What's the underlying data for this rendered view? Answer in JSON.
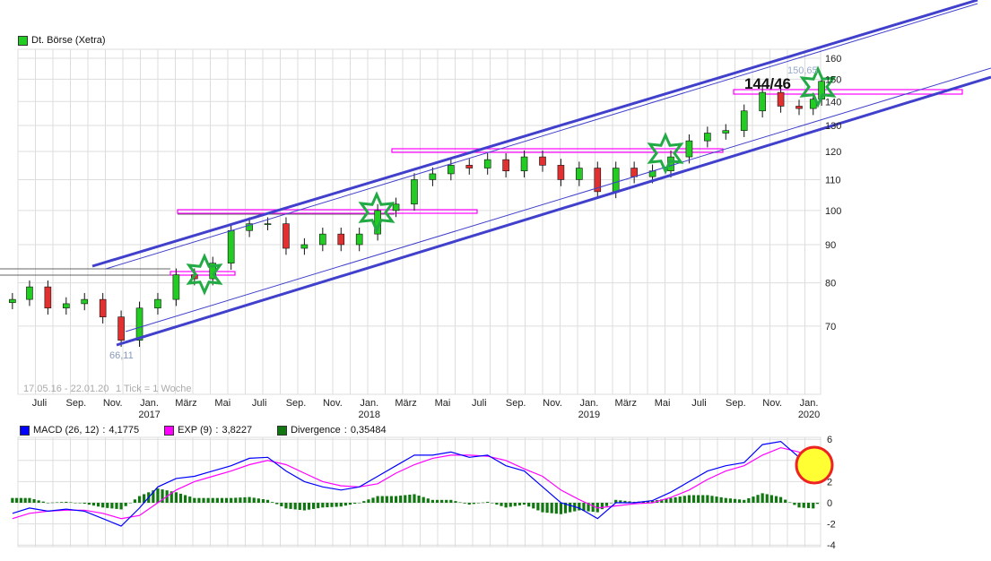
{
  "title": "Dt. Börse (Xetra)",
  "colors": {
    "up": "#22cc22",
    "down": "#e03030",
    "channel": "#4040cc",
    "resistance": "#ff00ff",
    "star": "#22aa44",
    "macd": "#0000ff",
    "exp": "#ff00ff",
    "divergence": "#117711",
    "grid": "#dddddd",
    "highlight_fill": "#ffff33",
    "highlight_ring": "#ee2222"
  },
  "range_text": "17.05.16 - 22.01.20",
  "tick_text": "1 Tick = 1 Woche",
  "annotation": "144/46",
  "high_label": "150,65",
  "low_label": "66,11",
  "chart_data": [
    {
      "type": "candlestick",
      "name": "Dt. Börse (Xetra)",
      "yscale": "log",
      "ylim": [
        62,
        165
      ],
      "yticks": [
        70,
        80,
        90,
        100,
        110,
        120,
        130,
        140,
        150,
        160
      ],
      "xticks": [
        {
          "label": "Juli",
          "date": "2016-07-01"
        },
        {
          "label": "Sep.",
          "date": "2016-09-01"
        },
        {
          "label": "Nov.",
          "date": "2016-11-01"
        },
        {
          "label": "Jan.",
          "year": "2017",
          "date": "2017-01-01"
        },
        {
          "label": "März",
          "date": "2017-03-01"
        },
        {
          "label": "Mai",
          "date": "2017-05-01"
        },
        {
          "label": "Juli",
          "date": "2017-07-01"
        },
        {
          "label": "Sep.",
          "date": "2017-09-01"
        },
        {
          "label": "Nov.",
          "date": "2017-11-01"
        },
        {
          "label": "Jan.",
          "year": "2018",
          "date": "2018-01-01"
        },
        {
          "label": "März",
          "date": "2018-03-01"
        },
        {
          "label": "Mai",
          "date": "2018-05-01"
        },
        {
          "label": "Juli",
          "date": "2018-07-01"
        },
        {
          "label": "Sep.",
          "date": "2018-09-01"
        },
        {
          "label": "Nov.",
          "date": "2018-11-01"
        },
        {
          "label": "Jan.",
          "year": "2019",
          "date": "2019-01-01"
        },
        {
          "label": "März",
          "date": "2019-03-01"
        },
        {
          "label": "Mai",
          "date": "2019-05-01"
        },
        {
          "label": "Juli",
          "date": "2019-07-01"
        },
        {
          "label": "Sep.",
          "date": "2019-09-01"
        },
        {
          "label": "Nov.",
          "date": "2019-11-01"
        },
        {
          "label": "Jan.",
          "year": "2020",
          "date": "2020-01-01"
        }
      ],
      "dates": [
        "2016-05-17",
        "2016-06-15",
        "2016-07-15",
        "2016-08-15",
        "2016-09-15",
        "2016-10-15",
        "2016-11-15",
        "2016-12-15",
        "2017-01-15",
        "2017-02-15",
        "2017-03-15",
        "2017-04-15",
        "2017-05-15",
        "2017-06-15",
        "2017-07-15",
        "2017-08-15",
        "2017-09-15",
        "2017-10-15",
        "2017-11-15",
        "2017-12-15",
        "2018-01-15",
        "2018-02-15",
        "2018-03-15",
        "2018-04-15",
        "2018-05-15",
        "2018-06-15",
        "2018-07-15",
        "2018-08-15",
        "2018-09-15",
        "2018-10-15",
        "2018-11-15",
        "2018-12-15",
        "2019-01-15",
        "2019-02-15",
        "2019-03-15",
        "2019-04-15",
        "2019-05-15",
        "2019-06-15",
        "2019-07-15",
        "2019-08-15",
        "2019-09-15",
        "2019-10-15",
        "2019-11-15",
        "2019-12-15",
        "2020-01-08",
        "2020-01-22"
      ],
      "close": [
        76,
        79,
        74,
        75,
        76,
        72,
        67,
        74,
        76,
        82,
        81,
        85,
        94,
        96,
        96,
        89,
        90,
        93,
        90,
        93,
        100,
        102,
        110,
        112,
        115,
        114,
        117,
        113,
        118,
        115,
        110,
        114,
        106,
        114,
        111,
        113,
        118,
        124,
        127,
        128,
        136,
        144,
        138,
        137,
        141,
        149
      ],
      "high": 150.65,
      "low": 66.11
    },
    {
      "type": "line",
      "ylim": [
        -4,
        6
      ],
      "yticks": [
        -4,
        -2,
        0,
        2,
        4,
        6
      ],
      "series": [
        {
          "name": "MACD (26, 12)",
          "last": "4,1775",
          "values": [
            -1,
            -0.5,
            -0.8,
            -0.6,
            -0.8,
            -1.5,
            -2.2,
            -0.5,
            1.5,
            2.3,
            2.5,
            3,
            3.5,
            4.2,
            4.3,
            3,
            2,
            1.5,
            1.2,
            1.5,
            2.5,
            3.5,
            4.5,
            4.5,
            4.8,
            4.3,
            4.5,
            3.5,
            3,
            1.5,
            0,
            -0.5,
            -1.5,
            0,
            0,
            0.2,
            1,
            2,
            3,
            3.5,
            3.8,
            5.5,
            5.8,
            4.3,
            3.2,
            4.18
          ]
        },
        {
          "name": "EXP (9)",
          "last": "3,8227",
          "values": [
            -1.5,
            -1,
            -0.8,
            -0.7,
            -0.7,
            -1,
            -1.5,
            -1.2,
            0,
            1.2,
            2,
            2.5,
            3,
            3.6,
            4,
            3.6,
            2.8,
            2,
            1.6,
            1.5,
            1.8,
            2.8,
            3.6,
            4.2,
            4.5,
            4.5,
            4.4,
            4,
            3.2,
            2.5,
            1.2,
            0.3,
            -0.5,
            -0.3,
            -0.1,
            0,
            0.5,
            1.2,
            2.2,
            3,
            3.5,
            4.5,
            5.2,
            4.8,
            3.8,
            3.82
          ]
        },
        {
          "name": "Divergence",
          "last": "0,35484",
          "type": "bar"
        }
      ]
    }
  ]
}
